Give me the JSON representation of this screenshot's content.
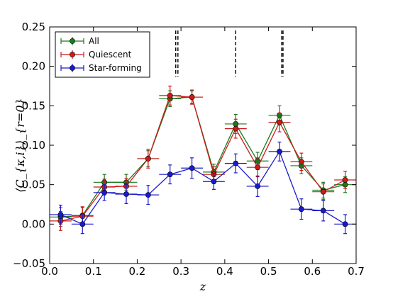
{
  "chart_data": {
    "type": "line",
    "title": "",
    "xlabel": "z",
    "ylabel": "⟨C_{κ,i}⟩_{r=0}",
    "xlim": [
      0.0,
      0.7
    ],
    "ylim": [
      -0.05,
      0.25
    ],
    "x_ticks": [
      "0.0",
      "0.1",
      "0.2",
      "0.3",
      "0.4",
      "0.5",
      "0.6",
      "0.7"
    ],
    "y_ticks": [
      "−0.05",
      "0.00",
      "0.05",
      "0.10",
      "0.15",
      "0.20",
      "0.25"
    ],
    "x_tick_values": [
      0.0,
      0.1,
      0.2,
      0.3,
      0.4,
      0.5,
      0.6,
      0.7
    ],
    "y_tick_values": [
      -0.05,
      0.0,
      0.05,
      0.1,
      0.15,
      0.2,
      0.25
    ],
    "legend_position": "top-left",
    "grid": false,
    "reference_lines_x": [
      0.288,
      0.293,
      0.425,
      0.53,
      0.533
    ],
    "series": [
      {
        "name": "All",
        "color": "#1a7a1a",
        "x": [
          0.025,
          0.075,
          0.125,
          0.175,
          0.225,
          0.275,
          0.325,
          0.375,
          0.425,
          0.475,
          0.525,
          0.575,
          0.625,
          0.675
        ],
        "y": [
          0.009,
          0.011,
          0.053,
          0.053,
          0.083,
          0.159,
          0.161,
          0.066,
          0.127,
          0.08,
          0.138,
          0.074,
          0.043,
          0.05
        ],
        "yerr": [
          0.012,
          0.01,
          0.01,
          0.01,
          0.01,
          0.01,
          0.008,
          0.01,
          0.012,
          0.011,
          0.012,
          0.01,
          0.01,
          0.01
        ]
      },
      {
        "name": "Quiescent",
        "color": "#cc1a1a",
        "x": [
          0.025,
          0.075,
          0.125,
          0.175,
          0.225,
          0.275,
          0.325,
          0.375,
          0.425,
          0.475,
          0.525,
          0.575,
          0.625,
          0.675
        ],
        "y": [
          0.004,
          0.01,
          0.047,
          0.048,
          0.083,
          0.163,
          0.161,
          0.063,
          0.121,
          0.072,
          0.129,
          0.079,
          0.041,
          0.056
        ],
        "yerr": [
          0.012,
          0.012,
          0.01,
          0.01,
          0.012,
          0.012,
          0.009,
          0.01,
          0.012,
          0.012,
          0.012,
          0.011,
          0.01,
          0.011
        ]
      },
      {
        "name": "Star-forming",
        "color": "#1a1acc",
        "x": [
          0.025,
          0.075,
          0.125,
          0.175,
          0.225,
          0.275,
          0.325,
          0.375,
          0.425,
          0.475,
          0.525,
          0.575,
          0.625,
          0.675
        ],
        "y": [
          0.012,
          0.0,
          0.04,
          0.038,
          0.037,
          0.063,
          0.071,
          0.054,
          0.077,
          0.048,
          0.092,
          0.019,
          0.017,
          0.0
        ],
        "yerr": [
          0.012,
          0.012,
          0.01,
          0.012,
          0.012,
          0.012,
          0.013,
          0.01,
          0.012,
          0.013,
          0.012,
          0.013,
          0.013,
          0.012
        ]
      }
    ],
    "x_halfwidth": 0.025
  }
}
